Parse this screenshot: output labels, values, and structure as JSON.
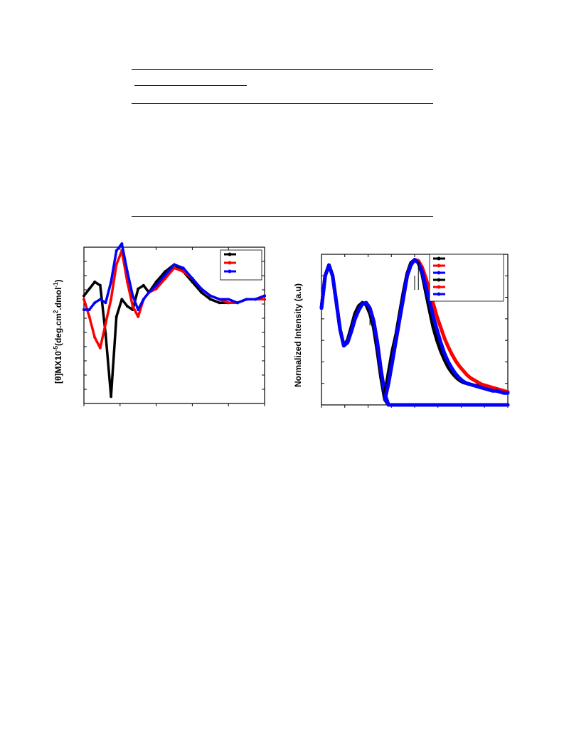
{
  "table": {
    "rows": []
  },
  "chart_data": [
    {
      "type": "line",
      "ylabel_prefix": "[θ]MX10",
      "ylabel_exp1": "-5",
      "ylabel_mid": "(deg.cm",
      "ylabel_exp2": "2",
      "ylabel_mid2": ".dmol",
      "ylabel_exp3": "-1",
      "ylabel_end": ")",
      "xlim": [
        0,
        100
      ],
      "ylim": [
        -30,
        15
      ],
      "legend_position": "top-right",
      "series": [
        {
          "color": "#000000",
          "marker": "square",
          "x": [
            0,
            3,
            6,
            9,
            12,
            15,
            18,
            21,
            24,
            27,
            30,
            33,
            36,
            40,
            45,
            50,
            55,
            60,
            65,
            70,
            75,
            80,
            85,
            90,
            95,
            100
          ],
          "y": [
            1,
            3,
            5,
            4,
            -10,
            -28,
            -5,
            0,
            -2,
            -3,
            3,
            4,
            2,
            5,
            8,
            10,
            8,
            5,
            2,
            0,
            -1,
            -1,
            -1,
            0,
            0,
            1
          ]
        },
        {
          "color": "#ff0000",
          "marker": "circle",
          "x": [
            0,
            3,
            6,
            9,
            12,
            15,
            18,
            21,
            24,
            27,
            30,
            33,
            36,
            40,
            45,
            50,
            55,
            60,
            65,
            70,
            75,
            80,
            85,
            90,
            95,
            100
          ],
          "y": [
            0,
            -5,
            -11,
            -14,
            -7,
            0,
            10,
            14,
            5,
            -2,
            -5,
            0,
            2,
            3,
            6,
            9,
            8,
            6,
            3,
            1,
            0,
            -1,
            -1,
            0,
            0,
            0
          ]
        },
        {
          "color": "#0000ff",
          "marker": "triangle",
          "x": [
            0,
            3,
            6,
            9,
            12,
            15,
            18,
            21,
            24,
            27,
            30,
            33,
            36,
            40,
            45,
            50,
            55,
            60,
            65,
            70,
            75,
            80,
            85,
            90,
            95,
            100
          ],
          "y": [
            -3,
            -3,
            -1,
            0,
            -1,
            5,
            14,
            16,
            8,
            1,
            -3,
            0,
            2,
            4,
            7,
            10,
            9,
            6,
            3,
            1,
            0,
            0,
            -1,
            0,
            0,
            1
          ]
        }
      ]
    },
    {
      "type": "line",
      "ylabel": "Normalized Intensity (a.u)",
      "xlim": [
        0,
        100
      ],
      "ylim": [
        0,
        1.4
      ],
      "legend_position": "top-right",
      "series": [
        {
          "color": "#000000",
          "x": [
            0,
            2,
            4,
            6,
            8,
            10,
            12,
            14,
            16,
            18,
            20,
            22,
            24,
            26,
            28,
            30,
            32,
            34,
            36,
            38,
            40,
            42,
            44,
            46,
            48,
            50,
            52,
            54,
            56,
            58,
            60,
            62,
            64,
            66,
            68,
            70,
            72,
            74,
            76,
            78,
            80,
            82,
            84,
            86,
            88,
            90,
            92,
            94,
            96,
            98,
            100
          ],
          "y": [
            0.9,
            1.2,
            1.3,
            1.2,
            0.95,
            0.7,
            0.55,
            0.6,
            0.72,
            0.85,
            0.92,
            0.95,
            0.93,
            0.85,
            0.72,
            0.5,
            0.25,
            0.05,
            0.0,
            0.0,
            0.0,
            0.0,
            0.0,
            0.0,
            0.0,
            0.0,
            0.0,
            0.0,
            0.0,
            0.0,
            0.0,
            0.0,
            0.0,
            0.0,
            0.0,
            0.0,
            0.0,
            0.0,
            0.0,
            0.0,
            0.0,
            0.0,
            0.0,
            0.0,
            0.0,
            0.0,
            0.0,
            0.0,
            0.0,
            0.0,
            0.0
          ]
        },
        {
          "color": "#ff0000",
          "x": [
            0,
            2,
            4,
            6,
            8,
            10,
            12,
            14,
            16,
            18,
            20,
            22,
            24,
            26,
            28,
            30,
            32,
            34,
            36,
            38,
            40,
            42,
            44,
            46,
            48,
            50,
            52,
            54,
            56,
            58,
            60,
            62,
            64,
            66,
            68,
            70,
            72,
            74,
            76,
            78,
            80,
            82,
            84,
            86,
            88,
            90,
            92,
            94,
            96,
            98,
            100
          ],
          "y": [
            0.9,
            1.2,
            1.3,
            1.2,
            0.95,
            0.7,
            0.55,
            0.58,
            0.68,
            0.8,
            0.88,
            0.94,
            0.95,
            0.9,
            0.78,
            0.58,
            0.32,
            0.1,
            0.0,
            0.0,
            0.0,
            0.0,
            0.0,
            0.0,
            0.0,
            0.0,
            0.0,
            0.0,
            0.0,
            0.0,
            0.0,
            0.0,
            0.0,
            0.0,
            0.0,
            0.0,
            0.0,
            0.0,
            0.0,
            0.0,
            0.0,
            0.0,
            0.0,
            0.0,
            0.0,
            0.0,
            0.0,
            0.0,
            0.0,
            0.0,
            0.0
          ]
        },
        {
          "color": "#0000ff",
          "x": [
            0,
            2,
            4,
            6,
            8,
            10,
            12,
            14,
            16,
            18,
            20,
            22,
            24,
            26,
            28,
            30,
            32,
            34,
            36,
            38,
            40,
            42,
            44,
            46,
            48,
            50,
            52,
            54,
            56,
            58,
            60,
            62,
            64,
            66,
            68,
            70,
            72,
            74,
            76,
            78,
            80,
            82,
            84,
            86,
            88,
            90,
            92,
            94,
            96,
            98,
            100
          ],
          "y": [
            0.9,
            1.2,
            1.3,
            1.2,
            0.95,
            0.7,
            0.55,
            0.58,
            0.68,
            0.8,
            0.88,
            0.94,
            0.95,
            0.9,
            0.78,
            0.58,
            0.32,
            0.1,
            0.0,
            0.0,
            0.0,
            0.0,
            0.0,
            0.0,
            0.0,
            0.0,
            0.0,
            0.0,
            0.0,
            0.0,
            0.0,
            0.0,
            0.0,
            0.0,
            0.0,
            0.0,
            0.0,
            0.0,
            0.0,
            0.0,
            0.0,
            0.0,
            0.0,
            0.0,
            0.0,
            0.0,
            0.0,
            0.0,
            0.0,
            0.0,
            0.0
          ]
        },
        {
          "color": "#000000",
          "x": [
            34,
            36,
            38,
            40,
            42,
            44,
            46,
            48,
            50,
            52,
            54,
            56,
            58,
            60,
            62,
            64,
            66,
            68,
            70,
            72,
            74,
            76,
            78,
            80,
            82,
            84,
            86,
            88,
            90,
            92,
            94,
            96,
            98,
            100
          ],
          "y": [
            0.1,
            0.3,
            0.5,
            0.65,
            0.85,
            1.05,
            1.22,
            1.32,
            1.35,
            1.32,
            1.22,
            1.05,
            0.88,
            0.72,
            0.6,
            0.5,
            0.42,
            0.35,
            0.3,
            0.26,
            0.23,
            0.21,
            0.2,
            0.19,
            0.18,
            0.18,
            0.17,
            0.16,
            0.15,
            0.14,
            0.13,
            0.13,
            0.12,
            0.12
          ]
        },
        {
          "color": "#ff0000",
          "x": [
            34,
            36,
            38,
            40,
            42,
            44,
            46,
            48,
            50,
            52,
            54,
            56,
            58,
            60,
            62,
            64,
            66,
            68,
            70,
            72,
            74,
            76,
            78,
            80,
            82,
            84,
            86,
            88,
            90,
            92,
            94,
            96,
            98,
            100
          ],
          "y": [
            0.05,
            0.2,
            0.4,
            0.6,
            0.8,
            1.0,
            1.2,
            1.3,
            1.35,
            1.34,
            1.28,
            1.18,
            1.06,
            0.94,
            0.82,
            0.72,
            0.62,
            0.54,
            0.47,
            0.41,
            0.36,
            0.32,
            0.28,
            0.25,
            0.23,
            0.21,
            0.19,
            0.18,
            0.17,
            0.16,
            0.15,
            0.14,
            0.13,
            0.12
          ]
        },
        {
          "color": "#0000ff",
          "x": [
            34,
            36,
            38,
            40,
            42,
            44,
            46,
            48,
            50,
            52,
            54,
            56,
            58,
            60,
            62,
            64,
            66,
            68,
            70,
            72,
            74,
            76,
            78,
            80,
            82,
            84,
            86,
            88,
            90,
            92,
            94,
            96,
            98,
            100
          ],
          "y": [
            0.05,
            0.2,
            0.4,
            0.6,
            0.8,
            1.0,
            1.2,
            1.3,
            1.35,
            1.32,
            1.24,
            1.1,
            0.96,
            0.82,
            0.7,
            0.58,
            0.48,
            0.4,
            0.34,
            0.29,
            0.25,
            0.22,
            0.2,
            0.19,
            0.18,
            0.17,
            0.16,
            0.15,
            0.14,
            0.13,
            0.13,
            0.12,
            0.11,
            0.11
          ]
        }
      ]
    }
  ]
}
